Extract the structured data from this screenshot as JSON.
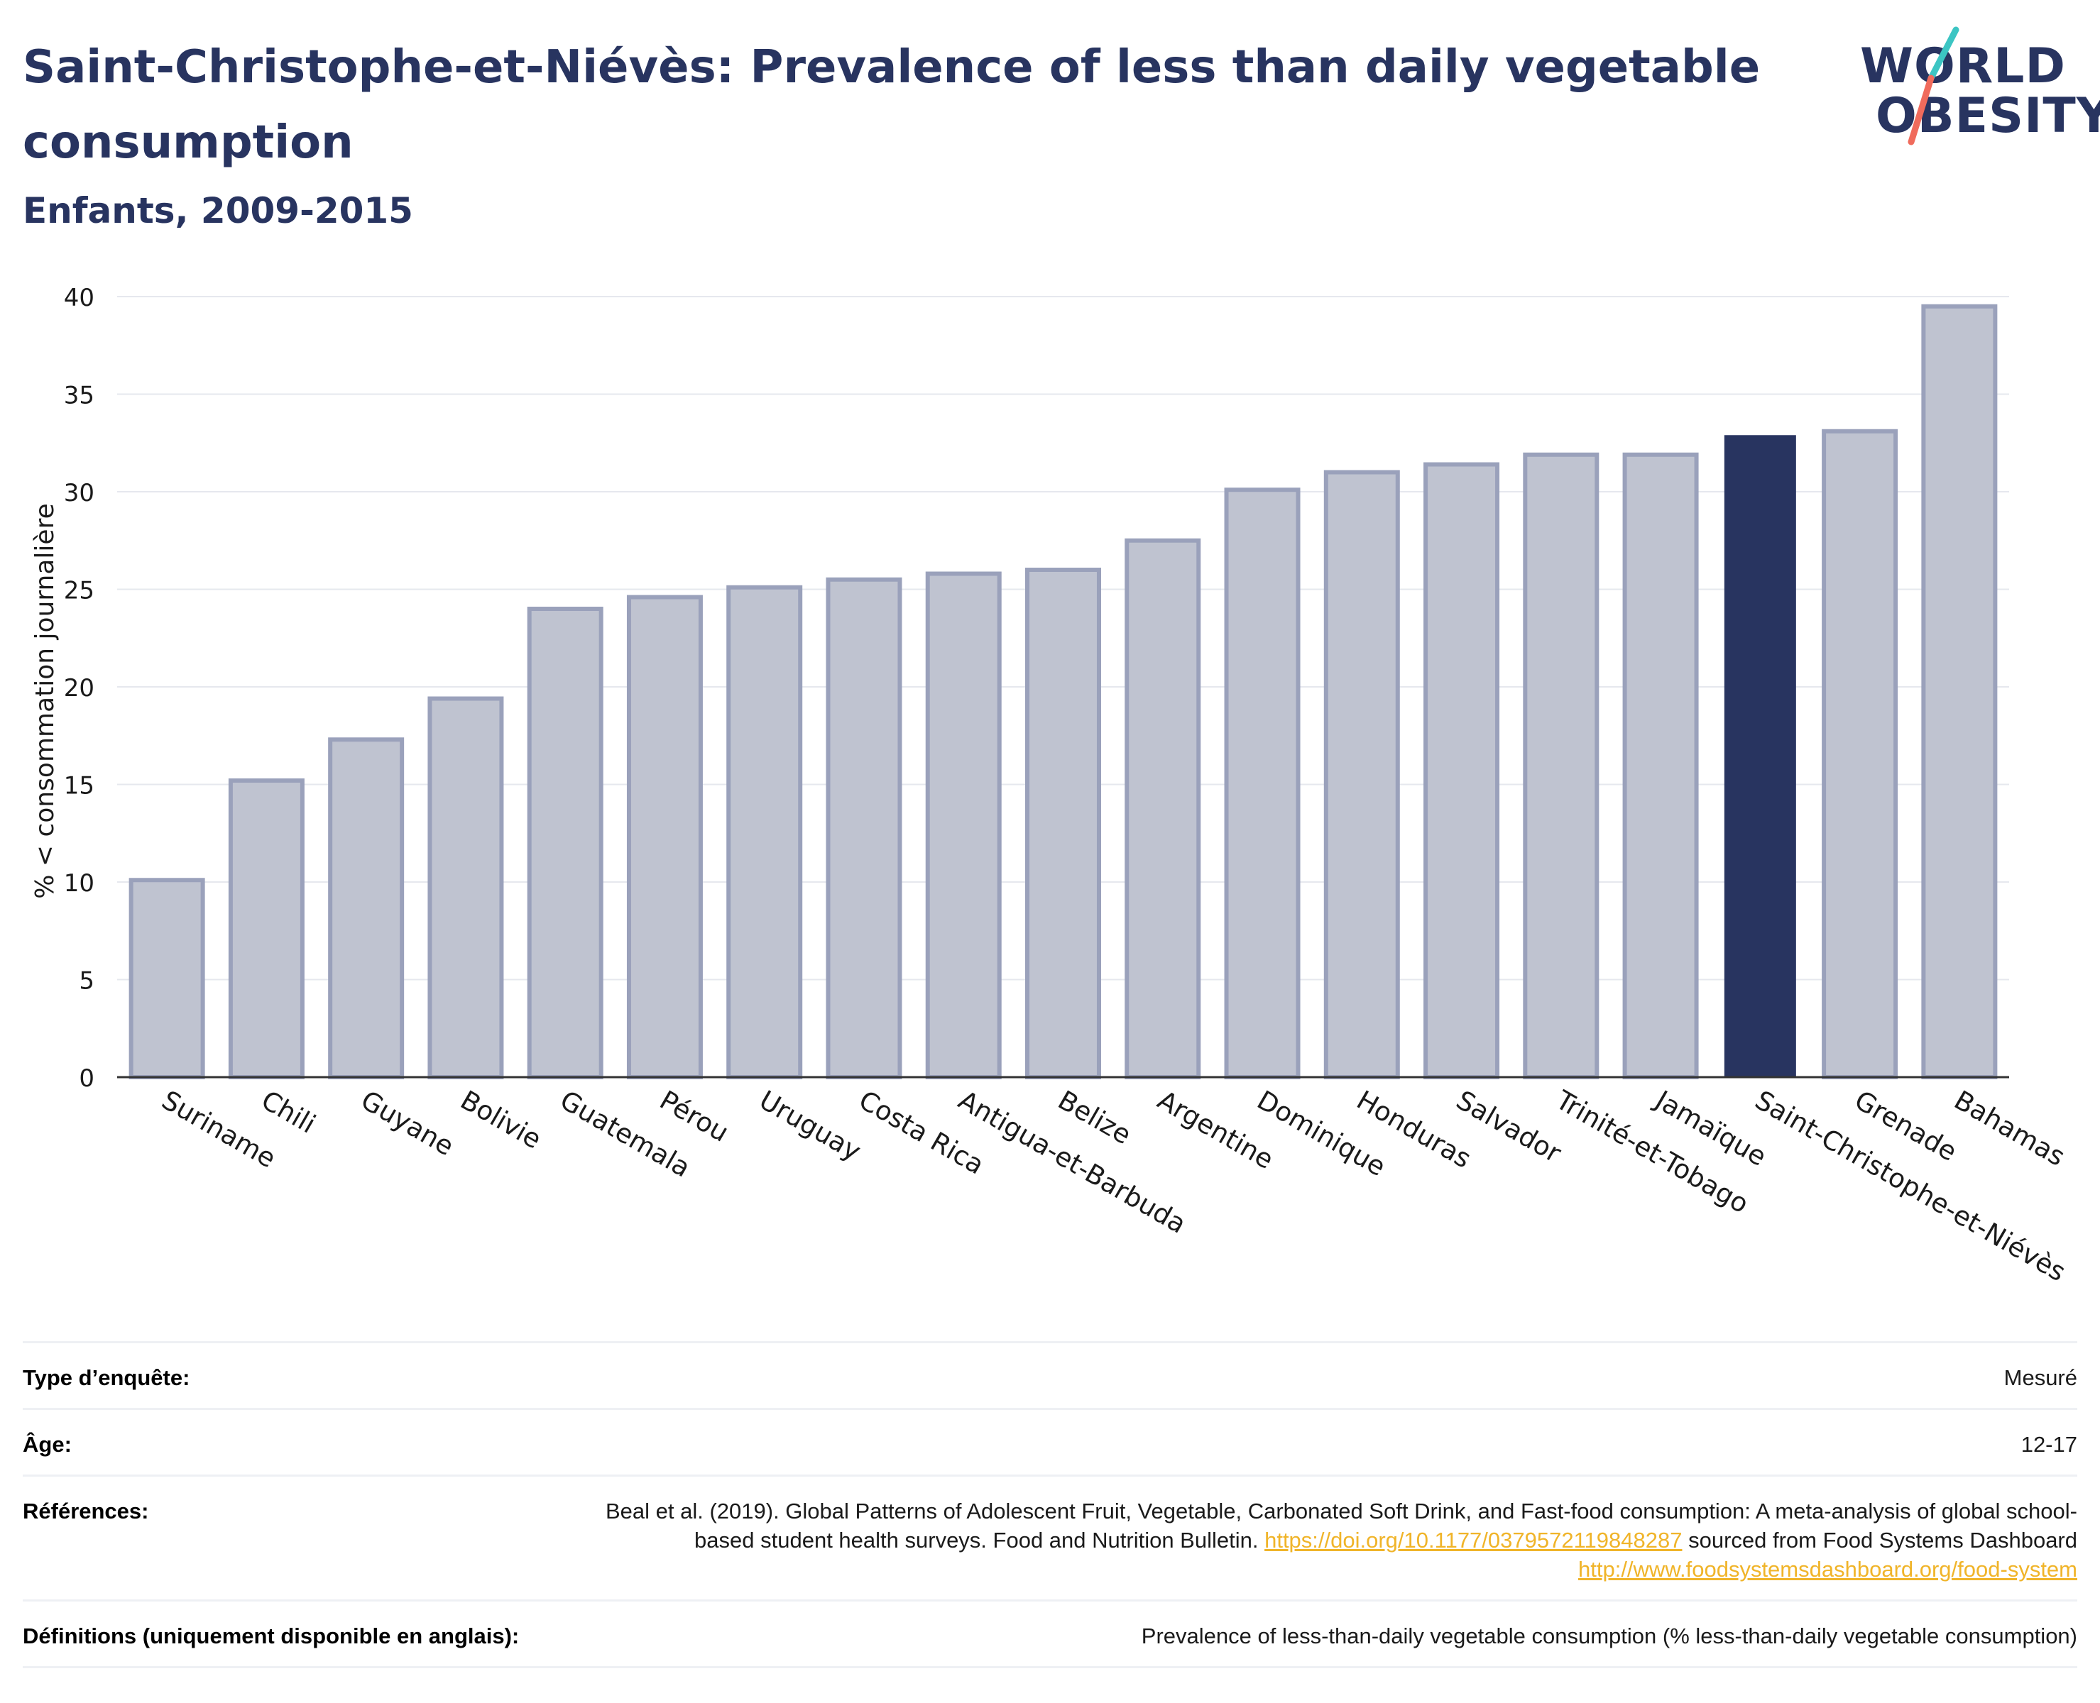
{
  "header": {
    "title": "Saint-Christophe-et-Niévès: Prevalence of less than daily vegetable consumption",
    "subtitle": "Enfants, 2009-2015"
  },
  "logo": {
    "line1": "WORLD",
    "line2": "OBESITY",
    "colors": {
      "navy": "#283460",
      "teal": "#3cc5c3",
      "coral": "#f06b5c"
    }
  },
  "colors": {
    "highlight": "#283460",
    "bar": "#bfc3d0",
    "bar_border": "#9aa1bb",
    "grid": "#e6e8ee",
    "link": "#f0b429"
  },
  "chart_data": {
    "type": "bar",
    "ylabel": "% < consommation journalière",
    "ylim": [
      0,
      40
    ],
    "yticks": [
      0,
      5,
      10,
      15,
      20,
      25,
      30,
      35,
      40
    ],
    "grid": true,
    "highlight": "Saint-Christophe-et-Niévès",
    "categories": [
      "Suriname",
      "Chili",
      "Guyane",
      "Bolivie",
      "Guatemala",
      "Pérou",
      "Uruguay",
      "Costa Rica",
      "Antigua-et-Barbuda",
      "Belize",
      "Argentine",
      "Dominique",
      "Honduras",
      "Salvador",
      "Trinité-et-Tobago",
      "Jamaïque",
      "Saint-Christophe-et-Niévès",
      "Grenade",
      "Bahamas"
    ],
    "values": [
      10.1,
      15.2,
      17.3,
      19.4,
      24.0,
      24.6,
      25.1,
      25.5,
      25.8,
      26.0,
      27.5,
      30.1,
      31.0,
      31.4,
      31.9,
      31.9,
      32.9,
      33.1,
      39.5
    ]
  },
  "meta": {
    "survey_label": "Type d’enquête:",
    "survey_value": "Mesuré",
    "age_label": "Âge:",
    "age_value": "12-17",
    "ref_label": "Références:",
    "ref_text1": "Beal et al. (2019). Global Patterns of Adolescent Fruit, Vegetable, Carbonated Soft Drink, and Fast-food consumption: A meta-analysis of global school-based student health surveys. Food and Nutrition Bulletin.",
    "ref_link1": "https://doi.org/10.1177/0379572119848287",
    "ref_text2": "sourced from Food Systems Dashboard",
    "ref_link2": "http://www.foodsystemsdashboard.org/food-system",
    "def_label": "Définitions (uniquement disponible en anglais):",
    "def_value": "Prevalence of less-than-daily vegetable consumption (% less-than-daily vegetable consumption)"
  }
}
